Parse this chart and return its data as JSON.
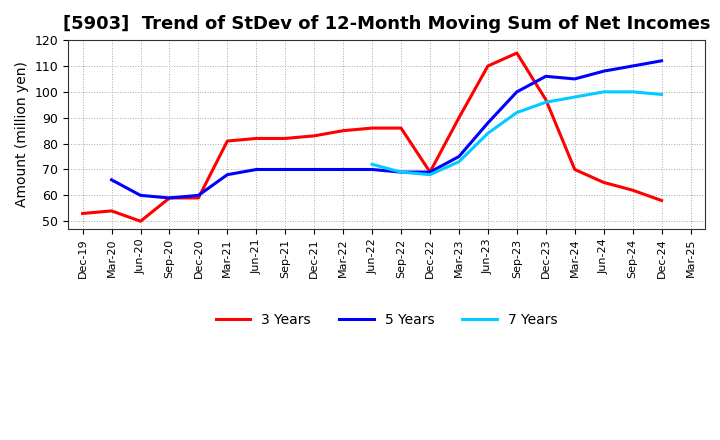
{
  "title": "[5903]  Trend of StDev of 12-Month Moving Sum of Net Incomes",
  "ylabel": "Amount (million yen)",
  "background_color": "#ffffff",
  "grid_color": "#aaaaaa",
  "title_fontsize": 13,
  "axis_fontsize": 10,
  "legend_fontsize": 10,
  "series": {
    "3 Years": {
      "color": "#ff0000",
      "y": [
        53,
        54,
        50,
        59,
        59,
        81,
        82,
        82,
        83,
        85,
        86,
        86,
        69,
        90,
        110,
        115,
        97,
        70,
        65,
        62,
        58,
        null
      ]
    },
    "5 Years": {
      "color": "#0000ff",
      "y": [
        null,
        66,
        60,
        59,
        60,
        68,
        70,
        70,
        70,
        70,
        70,
        69,
        69,
        75,
        88,
        100,
        106,
        105,
        108,
        110,
        112,
        null
      ]
    },
    "7 Years": {
      "color": "#00ccff",
      "y": [
        null,
        null,
        null,
        null,
        null,
        null,
        null,
        null,
        null,
        null,
        72,
        69,
        68,
        73,
        84,
        92,
        96,
        98,
        100,
        100,
        99,
        null
      ]
    },
    "10 Years": {
      "color": "#008000",
      "y": [
        null,
        null,
        null,
        null,
        null,
        null,
        null,
        null,
        null,
        null,
        null,
        null,
        null,
        null,
        null,
        null,
        null,
        null,
        null,
        null,
        null,
        null
      ]
    }
  },
  "xtick_labels": [
    "Dec-19",
    "Mar-20",
    "Jun-20",
    "Sep-20",
    "Dec-20",
    "Mar-21",
    "Jun-21",
    "Sep-21",
    "Dec-21",
    "Mar-22",
    "Jun-22",
    "Sep-22",
    "Dec-22",
    "Mar-23",
    "Jun-23",
    "Sep-23",
    "Dec-23",
    "Mar-24",
    "Jun-24",
    "Sep-24",
    "Dec-24",
    "Mar-25"
  ],
  "ylim": [
    47,
    120
  ],
  "yticks": [
    50,
    60,
    70,
    80,
    90,
    100,
    110,
    120
  ]
}
